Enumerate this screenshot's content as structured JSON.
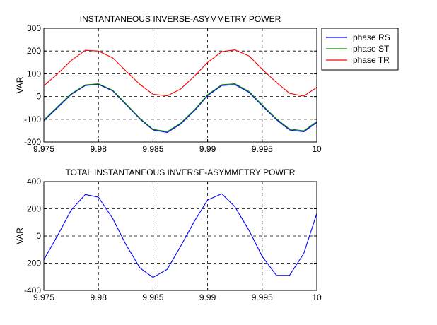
{
  "colors": {
    "background": "#ffffff",
    "axes": "#000000",
    "grid": "#000000",
    "phase_rs": "#0000ff",
    "phase_st": "#008000",
    "phase_tr": "#ff0000",
    "total": "#0000ff"
  },
  "chart_data": [
    {
      "type": "line",
      "title": "INSTANTANEOUS INVERSE-ASYMMETRY POWER",
      "xlabel": "",
      "ylabel": "VAR",
      "xlim": [
        9.975,
        10
      ],
      "ylim": [
        -200,
        300
      ],
      "xticks": [
        9.975,
        9.98,
        9.985,
        9.99,
        9.995,
        10
      ],
      "xtick_labels": [
        "9.975",
        "9.98",
        "9.985",
        "9.99",
        "9.995",
        "10"
      ],
      "yticks": [
        -200,
        -100,
        0,
        100,
        200,
        300
      ],
      "ytick_labels": [
        "-200",
        "-100",
        "0",
        "100",
        "200",
        "300"
      ],
      "grid": true,
      "legend": "outside-right-top",
      "series": [
        {
          "name": "phase RS",
          "color": "#0000ff",
          "x": [
            9.975,
            9.9763,
            9.9775,
            9.9788,
            9.98,
            9.9813,
            9.9825,
            9.9838,
            9.985,
            9.9863,
            9.9875,
            9.9888,
            9.99,
            9.9913,
            9.9925,
            9.9938,
            9.995,
            9.9963,
            9.9975,
            9.9988,
            10
          ],
          "y": [
            -107,
            -47,
            9,
            48,
            53,
            25,
            -34,
            -99,
            -147,
            -158,
            -122,
            -62,
            4,
            48,
            52,
            18,
            -41,
            -102,
            -147,
            -155,
            -115
          ]
        },
        {
          "name": "phase ST",
          "color": "#008000",
          "x": [
            9.975,
            9.9763,
            9.9775,
            9.9788,
            9.98,
            9.9813,
            9.9825,
            9.9838,
            9.985,
            9.9863,
            9.9875,
            9.9888,
            9.99,
            9.9913,
            9.9925,
            9.9938,
            9.995,
            9.9963,
            9.9975,
            9.9988,
            10
          ],
          "y": [
            -103,
            -43,
            12,
            51,
            56,
            28,
            -31,
            -96,
            -144,
            -154,
            -118,
            -58,
            8,
            52,
            56,
            22,
            -37,
            -98,
            -143,
            -151,
            -110
          ]
        },
        {
          "name": "phase TR",
          "color": "#ff0000",
          "x": [
            9.975,
            9.9763,
            9.9775,
            9.9788,
            9.98,
            9.9813,
            9.9825,
            9.9838,
            9.985,
            9.9863,
            9.9875,
            9.9888,
            9.99,
            9.9913,
            9.9925,
            9.9938,
            9.995,
            9.9963,
            9.9975,
            9.9988,
            10
          ],
          "y": [
            47,
            102,
            158,
            203,
            200,
            170,
            113,
            53,
            10,
            3,
            32,
            90,
            150,
            197,
            205,
            178,
            120,
            62,
            14,
            2,
            40
          ]
        }
      ]
    },
    {
      "type": "line",
      "title": "TOTAL INSTANTANEOUS INVERSE-ASYMMETRY POWER",
      "xlabel": "",
      "ylabel": "VAR",
      "xlim": [
        9.975,
        10
      ],
      "ylim": [
        -400,
        400
      ],
      "xticks": [
        9.975,
        9.98,
        9.985,
        9.99,
        9.995,
        10
      ],
      "xtick_labels": [
        "9.975",
        "9.98",
        "9.985",
        "9.99",
        "9.995",
        "10"
      ],
      "yticks": [
        -400,
        -200,
        0,
        200,
        400
      ],
      "ytick_labels": [
        "-400",
        "-200",
        "0",
        "200",
        "400"
      ],
      "grid": true,
      "legend": "none",
      "series": [
        {
          "color": "#0000ff",
          "x": [
            9.975,
            9.9763,
            9.9775,
            9.9788,
            9.98,
            9.9813,
            9.9825,
            9.9838,
            9.985,
            9.9863,
            9.9875,
            9.9888,
            9.99,
            9.9913,
            9.9925,
            9.9938,
            9.995,
            9.9963,
            9.9975,
            9.9988,
            10
          ],
          "y": [
            -175,
            10,
            190,
            305,
            285,
            130,
            -60,
            -235,
            -305,
            -245,
            -80,
            110,
            265,
            310,
            215,
            40,
            -150,
            -290,
            -290,
            -130,
            165
          ]
        }
      ]
    }
  ]
}
